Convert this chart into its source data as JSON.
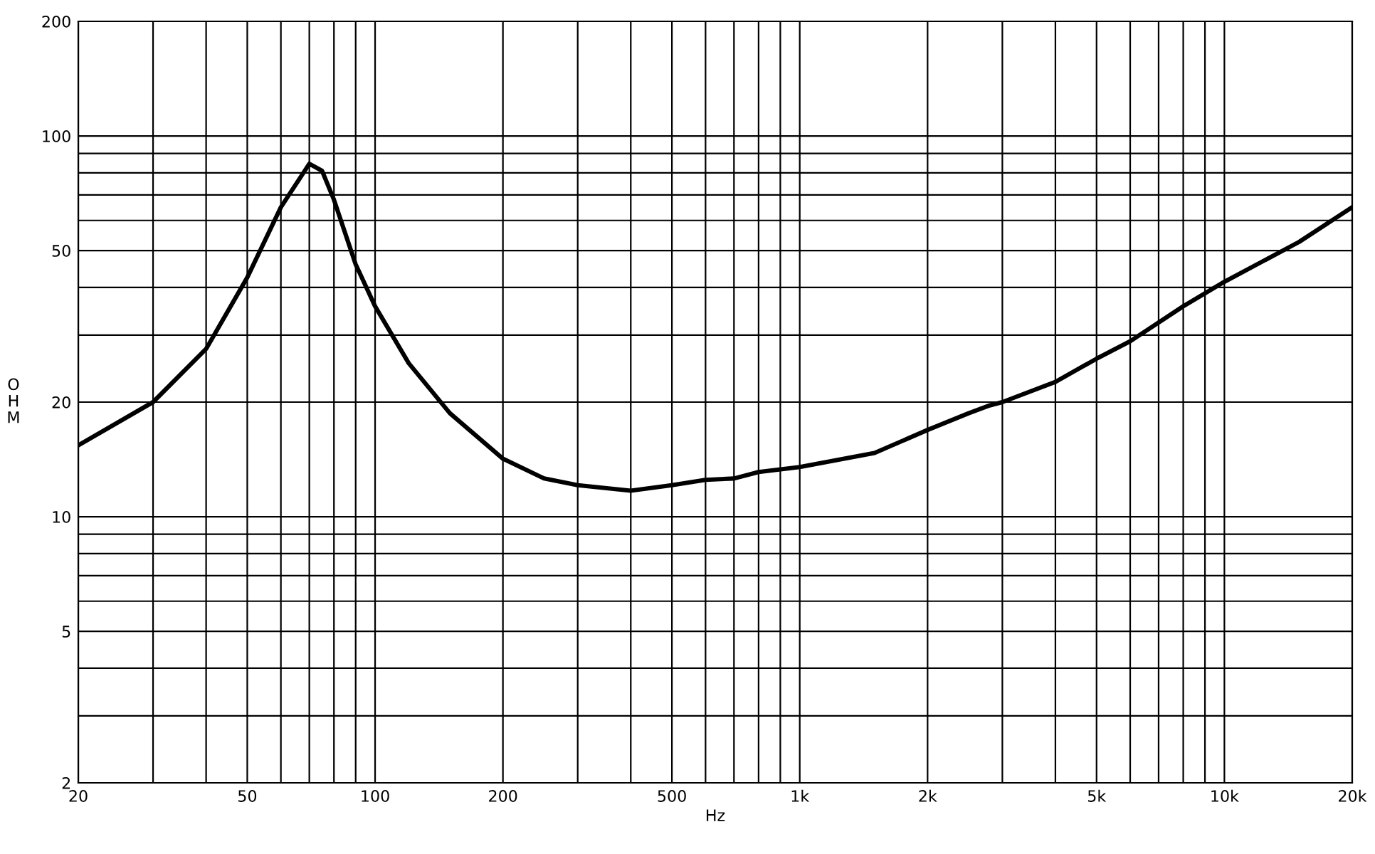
{
  "chart_data": {
    "type": "line",
    "xlabel": "Hz",
    "ylabel": "OHM",
    "log": "xy",
    "grid": true,
    "marker": "none",
    "line_style": "solid",
    "xlim": [
      20,
      20000
    ],
    "ylim": [
      2,
      200
    ],
    "xticks": [
      20,
      {
        "value": 30,
        "label": null
      },
      {
        "value": 40,
        "label": null
      },
      50,
      {
        "value": 60,
        "label": null
      },
      {
        "value": 70,
        "label": null
      },
      {
        "value": 80,
        "label": null
      },
      {
        "value": 90,
        "label": null
      },
      100,
      200,
      {
        "value": 300,
        "label": null
      },
      {
        "value": 400,
        "label": null
      },
      500,
      {
        "value": 600,
        "label": null
      },
      {
        "value": 700,
        "label": null
      },
      {
        "value": 800,
        "label": null
      },
      {
        "value": 900,
        "label": null
      },
      {
        "value": 1000,
        "label": "1k"
      },
      {
        "value": 2000,
        "label": "2k"
      },
      {
        "value": 3000,
        "label": null
      },
      {
        "value": 4000,
        "label": null
      },
      {
        "value": 5000,
        "label": "5k"
      },
      {
        "value": 6000,
        "label": null
      },
      {
        "value": 7000,
        "label": null
      },
      {
        "value": 8000,
        "label": null
      },
      {
        "value": 9000,
        "label": null
      },
      {
        "value": 10000,
        "label": "10k"
      },
      {
        "value": 20000,
        "label": "20k"
      }
    ],
    "yticks": [
      2,
      {
        "value": 3,
        "label": null
      },
      {
        "value": 4,
        "label": null
      },
      5,
      {
        "value": 6,
        "label": null
      },
      {
        "value": 7,
        "label": null
      },
      {
        "value": 8,
        "label": null
      },
      {
        "value": 9,
        "label": null
      },
      10,
      20,
      {
        "value": 30,
        "label": null
      },
      {
        "value": 40,
        "label": null
      },
      50,
      {
        "value": 60,
        "label": null
      },
      {
        "value": 70,
        "label": null
      },
      {
        "value": 80,
        "label": null
      },
      {
        "value": 90,
        "label": null
      },
      100,
      200
    ],
    "x": [
      20,
      30,
      40,
      50,
      60,
      70,
      75,
      80,
      90,
      100,
      120,
      150,
      200,
      250,
      300,
      400,
      500,
      600,
      700,
      800,
      1000,
      1500,
      2000,
      2500,
      2800,
      3000,
      4000,
      5000,
      6000,
      8000,
      10000,
      15000,
      20000
    ],
    "series": [
      {
        "color": "#000000",
        "values": [
          15.4,
          20,
          27.6,
          42.5,
          65,
          84.5,
          81,
          68,
          46,
          35.7,
          25.3,
          18.7,
          14.2,
          12.6,
          12.1,
          11.7,
          12.1,
          12.5,
          12.6,
          13.1,
          13.5,
          14.7,
          16.9,
          18.7,
          19.6,
          20,
          22.6,
          26,
          28.9,
          35.7,
          41.4,
          52.7,
          65
        ]
      }
    ]
  }
}
